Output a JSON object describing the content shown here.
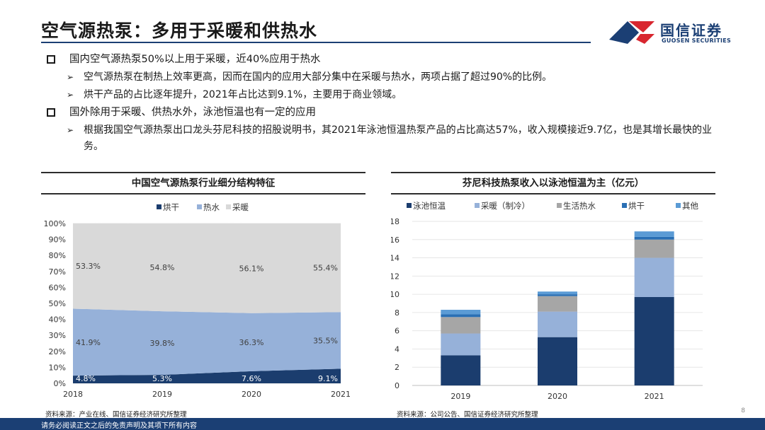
{
  "title": "空气源热泵：多用于采暖和供热水",
  "logo": {
    "cn": "国信证券",
    "en": "GUOSEN SECURITIES"
  },
  "bullets": [
    {
      "text": "国内空气源热泵50%以上用于采暖，近40%应用于热水",
      "subs": [
        "空气源热泵在制热上效率更高，因而在国内的应用大部分集中在采暖与热水，两项占据了超过90%的比例。",
        "烘干产品的占比逐年提升，2021年占比达到9.1%，主要用于商业领域。"
      ]
    },
    {
      "text": "国外除用于采暖、供热水外，泳池恒温也有一定的应用",
      "subs": [
        "根据我国空气源热泵出口龙头芬尼科技的招股说明书，其2021年泳池恒温热泵产品的占比高达57%，收入规模接近9.7亿，也是其增长最快的业务。"
      ]
    }
  ],
  "left_panel": {
    "title": "中国空气源热泵行业细分结构特征",
    "source": "资料来源：产业在线、国信证券经济研究所整理"
  },
  "right_panel": {
    "title": "芬尼科技热泵收入以泳池恒温为主（亿元）",
    "source": "资料来源：公司公告、国信证券经济研究所整理"
  },
  "footer": "请务必阅读正文之后的免责声明及其项下所有内容",
  "page_number": "8",
  "chart_data": [
    {
      "type": "area",
      "stacked": true,
      "percent": true,
      "x": [
        "2018",
        "2019",
        "2020",
        "2021"
      ],
      "series": [
        {
          "name": "烘干",
          "values": [
            4.8,
            5.3,
            7.6,
            9.1
          ],
          "labels": [
            "4.8%",
            "5.3%",
            "7.6%",
            "9.1%"
          ],
          "color": "#1b3d6e"
        },
        {
          "name": "热水",
          "values": [
            41.9,
            39.8,
            36.3,
            35.5
          ],
          "labels": [
            "41.9%",
            "39.8%",
            "36.3%",
            "35.5%"
          ],
          "color": "#96b1d9"
        },
        {
          "name": "采暖",
          "values": [
            53.3,
            54.8,
            56.1,
            55.4
          ],
          "labels": [
            "53.3%",
            "54.8%",
            "56.1%",
            "55.4%"
          ],
          "color": "#d9d9d9"
        }
      ],
      "yticks": [
        "0%",
        "10%",
        "20%",
        "30%",
        "40%",
        "50%",
        "60%",
        "70%",
        "80%",
        "90%",
        "100%"
      ],
      "ylim": [
        0,
        100
      ],
      "legend": "top"
    },
    {
      "type": "bar",
      "stacked": true,
      "categories": [
        "2019",
        "2020",
        "2021"
      ],
      "series": [
        {
          "name": "泳池恒温",
          "values": [
            3.3,
            5.3,
            9.7
          ],
          "color": "#1b3d6e"
        },
        {
          "name": "采暖（制冷）",
          "values": [
            2.4,
            2.8,
            4.3
          ],
          "color": "#96b1d9"
        },
        {
          "name": "生活热水",
          "values": [
            1.8,
            1.7,
            2.0
          ],
          "color": "#a6a6a6"
        },
        {
          "name": "烘干",
          "values": [
            0.3,
            0.2,
            0.3
          ],
          "color": "#2a6fb4"
        },
        {
          "name": "其他",
          "values": [
            0.5,
            0.3,
            0.6
          ],
          "color": "#5b9bd5"
        }
      ],
      "yticks": [
        "0",
        "2",
        "4",
        "6",
        "8",
        "10",
        "12",
        "14",
        "16",
        "18"
      ],
      "ylim": [
        0,
        18
      ],
      "legend": "top"
    }
  ]
}
